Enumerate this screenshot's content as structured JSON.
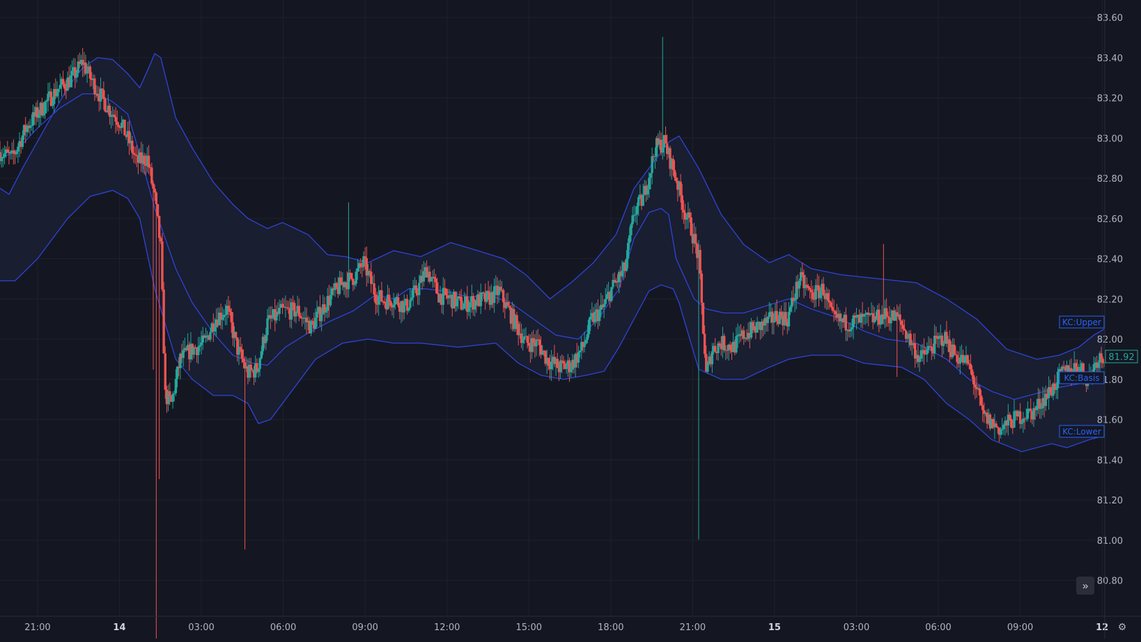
{
  "chart_data": {
    "type": "candlestick",
    "y_axis": {
      "min": 80.7,
      "max": 83.7,
      "ticks": [
        "83.60",
        "83.40",
        "83.20",
        "83.00",
        "82.80",
        "82.60",
        "82.40",
        "82.20",
        "82.00",
        "81.80",
        "81.60",
        "81.40",
        "81.20",
        "81.00",
        "80.80"
      ]
    },
    "x_axis": {
      "ticks": [
        "21:00",
        "14",
        "03:00",
        "06:00",
        "09:00",
        "12:00",
        "15:00",
        "18:00",
        "21:00",
        "15",
        "03:00",
        "06:00",
        "09:00",
        "12"
      ]
    },
    "grid": true,
    "last_price": "81.92",
    "series": [
      {
        "name": "KC:Upper",
        "label": "KC:Upper",
        "points": [
          [
            0,
            82.75
          ],
          [
            6,
            82.72
          ],
          [
            15,
            82.85
          ],
          [
            30,
            83.05
          ],
          [
            45,
            83.25
          ],
          [
            55,
            83.35
          ],
          [
            65,
            83.4
          ],
          [
            75,
            83.39
          ],
          [
            85,
            83.32
          ],
          [
            93,
            83.25
          ],
          [
            99,
            83.35
          ],
          [
            103,
            83.42
          ],
          [
            107,
            83.4
          ],
          [
            117,
            83.1
          ],
          [
            128,
            82.95
          ],
          [
            142,
            82.78
          ],
          [
            155,
            82.67
          ],
          [
            165,
            82.6
          ],
          [
            178,
            82.55
          ],
          [
            188,
            82.58
          ],
          [
            205,
            82.52
          ],
          [
            218,
            82.42
          ],
          [
            230,
            82.41
          ],
          [
            245,
            82.38
          ],
          [
            262,
            82.44
          ],
          [
            280,
            82.41
          ],
          [
            300,
            82.48
          ],
          [
            318,
            82.44
          ],
          [
            335,
            82.4
          ],
          [
            350,
            82.32
          ],
          [
            366,
            82.2
          ],
          [
            380,
            82.28
          ],
          [
            395,
            82.38
          ],
          [
            410,
            82.52
          ],
          [
            422,
            82.75
          ],
          [
            432,
            82.85
          ],
          [
            445,
            82.98
          ],
          [
            452,
            83.01
          ],
          [
            465,
            82.85
          ],
          [
            480,
            82.62
          ],
          [
            495,
            82.47
          ],
          [
            512,
            82.38
          ],
          [
            525,
            82.42
          ],
          [
            540,
            82.35
          ],
          [
            560,
            82.32
          ],
          [
            585,
            82.3
          ],
          [
            610,
            82.28
          ],
          [
            630,
            82.2
          ],
          [
            650,
            82.1
          ],
          [
            670,
            81.95
          ],
          [
            690,
            81.9
          ],
          [
            705,
            81.92
          ],
          [
            718,
            81.96
          ],
          [
            728,
            82.02
          ],
          [
            735,
            82.05
          ]
        ]
      },
      {
        "name": "KC:Basis",
        "label": "KC:Basis",
        "points": [
          [
            0,
            82.9
          ],
          [
            10,
            82.93
          ],
          [
            25,
            83.05
          ],
          [
            40,
            83.15
          ],
          [
            55,
            83.22
          ],
          [
            65,
            83.22
          ],
          [
            75,
            83.18
          ],
          [
            85,
            83.12
          ],
          [
            93,
            82.92
          ],
          [
            103,
            82.65
          ],
          [
            117,
            82.35
          ],
          [
            128,
            82.18
          ],
          [
            142,
            82.03
          ],
          [
            155,
            81.92
          ],
          [
            168,
            81.88
          ],
          [
            178,
            81.87
          ],
          [
            190,
            81.96
          ],
          [
            205,
            82.03
          ],
          [
            220,
            82.09
          ],
          [
            235,
            82.14
          ],
          [
            250,
            82.22
          ],
          [
            262,
            82.2
          ],
          [
            272,
            82.25
          ],
          [
            283,
            82.25
          ],
          [
            295,
            82.24
          ],
          [
            312,
            82.21
          ],
          [
            325,
            82.22
          ],
          [
            340,
            82.18
          ],
          [
            355,
            82.1
          ],
          [
            370,
            82.02
          ],
          [
            385,
            82.0
          ],
          [
            398,
            82.1
          ],
          [
            412,
            82.25
          ],
          [
            422,
            82.5
          ],
          [
            432,
            82.63
          ],
          [
            440,
            82.65
          ],
          [
            445,
            82.62
          ],
          [
            450,
            82.4
          ],
          [
            462,
            82.2
          ],
          [
            470,
            82.15
          ],
          [
            482,
            82.13
          ],
          [
            495,
            82.13
          ],
          [
            512,
            82.17
          ],
          [
            525,
            82.2
          ],
          [
            540,
            82.15
          ],
          [
            560,
            82.1
          ],
          [
            575,
            82.04
          ],
          [
            590,
            82.0
          ],
          [
            610,
            81.98
          ],
          [
            630,
            81.9
          ],
          [
            645,
            81.8
          ],
          [
            660,
            81.74
          ],
          [
            675,
            81.7
          ],
          [
            690,
            81.73
          ],
          [
            705,
            81.76
          ],
          [
            720,
            81.78
          ],
          [
            735,
            81.82
          ]
        ]
      },
      {
        "name": "KC:Lower",
        "label": "KC:Lower",
        "points": [
          [
            0,
            82.29
          ],
          [
            10,
            82.29
          ],
          [
            25,
            82.4
          ],
          [
            45,
            82.6
          ],
          [
            60,
            82.71
          ],
          [
            75,
            82.74
          ],
          [
            85,
            82.7
          ],
          [
            93,
            82.6
          ],
          [
            103,
            82.25
          ],
          [
            117,
            81.9
          ],
          [
            128,
            81.8
          ],
          [
            142,
            81.72
          ],
          [
            155,
            81.72
          ],
          [
            165,
            81.68
          ],
          [
            172,
            81.58
          ],
          [
            180,
            81.6
          ],
          [
            195,
            81.75
          ],
          [
            210,
            81.9
          ],
          [
            228,
            81.98
          ],
          [
            245,
            82.0
          ],
          [
            262,
            81.98
          ],
          [
            280,
            81.98
          ],
          [
            305,
            81.96
          ],
          [
            330,
            81.98
          ],
          [
            345,
            81.88
          ],
          [
            360,
            81.82
          ],
          [
            375,
            81.8
          ],
          [
            390,
            81.82
          ],
          [
            402,
            81.84
          ],
          [
            412,
            81.96
          ],
          [
            422,
            82.1
          ],
          [
            432,
            82.24
          ],
          [
            440,
            82.27
          ],
          [
            448,
            82.25
          ],
          [
            452,
            82.18
          ],
          [
            465,
            81.85
          ],
          [
            480,
            81.8
          ],
          [
            495,
            81.8
          ],
          [
            512,
            81.86
          ],
          [
            525,
            81.9
          ],
          [
            540,
            81.92
          ],
          [
            560,
            81.92
          ],
          [
            575,
            81.88
          ],
          [
            600,
            81.86
          ],
          [
            615,
            81.8
          ],
          [
            630,
            81.68
          ],
          [
            645,
            81.6
          ],
          [
            660,
            81.5
          ],
          [
            680,
            81.44
          ],
          [
            700,
            81.48
          ],
          [
            710,
            81.46
          ],
          [
            725,
            81.5
          ],
          [
            735,
            81.52
          ]
        ]
      }
    ],
    "price_anchors": [
      [
        0,
        82.93
      ],
      [
        8,
        82.9
      ],
      [
        18,
        83.06
      ],
      [
        28,
        83.15
      ],
      [
        38,
        83.24
      ],
      [
        48,
        83.3
      ],
      [
        55,
        83.38
      ],
      [
        60,
        83.3
      ],
      [
        66,
        83.22
      ],
      [
        73,
        83.14
      ],
      [
        80,
        83.08
      ],
      [
        86,
        82.98
      ],
      [
        91,
        82.88
      ],
      [
        98,
        82.9
      ],
      [
        103,
        82.7
      ],
      [
        107,
        82.45
      ],
      [
        110,
        81.72
      ],
      [
        114,
        81.68
      ],
      [
        120,
        81.9
      ],
      [
        128,
        81.95
      ],
      [
        136,
        81.98
      ],
      [
        143,
        82.1
      ],
      [
        151,
        82.15
      ],
      [
        158,
        81.95
      ],
      [
        165,
        81.83
      ],
      [
        171,
        81.85
      ],
      [
        178,
        82.08
      ],
      [
        188,
        82.14
      ],
      [
        198,
        82.14
      ],
      [
        207,
        82.06
      ],
      [
        218,
        82.19
      ],
      [
        228,
        82.28
      ],
      [
        236,
        82.31
      ],
      [
        242,
        82.38
      ],
      [
        250,
        82.22
      ],
      [
        256,
        82.19
      ],
      [
        262,
        82.2
      ],
      [
        270,
        82.16
      ],
      [
        278,
        82.25
      ],
      [
        284,
        82.35
      ],
      [
        292,
        82.22
      ],
      [
        300,
        82.2
      ],
      [
        308,
        82.17
      ],
      [
        316,
        82.19
      ],
      [
        325,
        82.2
      ],
      [
        332,
        82.24
      ],
      [
        340,
        82.12
      ],
      [
        350,
        81.98
      ],
      [
        358,
        81.98
      ],
      [
        364,
        81.9
      ],
      [
        372,
        81.86
      ],
      [
        380,
        81.87
      ],
      [
        388,
        81.96
      ],
      [
        394,
        82.1
      ],
      [
        401,
        82.15
      ],
      [
        407,
        82.25
      ],
      [
        416,
        82.35
      ],
      [
        422,
        82.63
      ],
      [
        428,
        82.7
      ],
      [
        433,
        82.85
      ],
      [
        436,
        82.95
      ],
      [
        442,
        82.98
      ],
      [
        450,
        82.8
      ],
      [
        455,
        82.65
      ],
      [
        460,
        82.55
      ],
      [
        465,
        82.4
      ],
      [
        470,
        81.82
      ],
      [
        474,
        81.95
      ],
      [
        480,
        81.98
      ],
      [
        488,
        81.96
      ],
      [
        495,
        82.02
      ],
      [
        502,
        82.05
      ],
      [
        510,
        82.08
      ],
      [
        518,
        82.12
      ],
      [
        524,
        82.1
      ],
      [
        532,
        82.3
      ],
      [
        540,
        82.22
      ],
      [
        548,
        82.25
      ],
      [
        554,
        82.1
      ],
      [
        562,
        82.08
      ],
      [
        572,
        82.09
      ],
      [
        582,
        82.1
      ],
      [
        590,
        82.12
      ],
      [
        598,
        82.1
      ],
      [
        606,
        81.99
      ],
      [
        612,
        81.9
      ],
      [
        620,
        81.96
      ],
      [
        628,
        82.01
      ],
      [
        636,
        81.92
      ],
      [
        644,
        81.88
      ],
      [
        650,
        81.75
      ],
      [
        654,
        81.62
      ],
      [
        660,
        81.58
      ],
      [
        666,
        81.55
      ],
      [
        672,
        81.59
      ],
      [
        680,
        81.62
      ],
      [
        688,
        81.64
      ],
      [
        694,
        81.7
      ],
      [
        700,
        81.75
      ],
      [
        706,
        81.82
      ],
      [
        712,
        81.85
      ],
      [
        718,
        81.87
      ],
      [
        724,
        81.8
      ],
      [
        730,
        81.9
      ],
      [
        735,
        81.92
      ]
    ]
  },
  "ui": {
    "scroll_icon": "double-chevron-right-icon",
    "settings_icon": "gear-icon",
    "colors": {
      "background": "#141722",
      "grid": "#1e222d",
      "axis_text": "#b2b5be",
      "up": "#26a69a",
      "down": "#ef5350",
      "channel_line": "#2f44d6",
      "channel_fill": "#1a1f33",
      "label_text": "#2962ff",
      "last_price_text": "#26a69a"
    }
  }
}
